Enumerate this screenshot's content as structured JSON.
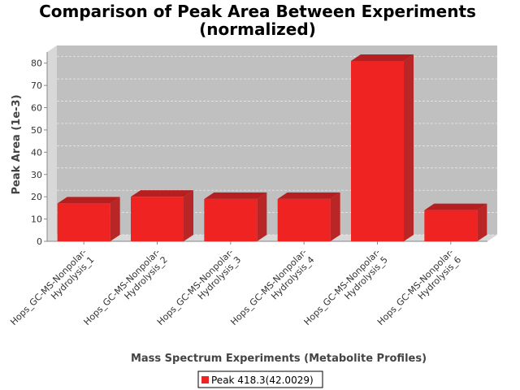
{
  "chart_data": {
    "type": "bar",
    "title_lines": [
      "Comparison of Peak Area Between Experiments",
      "(normalized)"
    ],
    "xlabel": "Mass Spectrum Experiments (Metabolite Profiles)",
    "ylabel": "Peak Area (1e-3)",
    "ylim": [
      0,
      85
    ],
    "yticks": [
      0,
      10,
      20,
      30,
      40,
      50,
      60,
      70,
      80
    ],
    "categories": [
      [
        "Hops_GC-MS-Nonpolar-",
        "Hydrolysis_1"
      ],
      [
        "Hops_GC-MS-Nonpolar-",
        "Hydrolysis_2"
      ],
      [
        "Hops_GC-MS-Nonpolar-",
        "Hydrolysis_3"
      ],
      [
        "Hops_GC-MS-Nonpolar-",
        "Hydrolysis_4"
      ],
      [
        "Hops_GC-MS-Nonpolar-",
        "Hydrolysis_5"
      ],
      [
        "Hops_GC-MS-Nonpolar-",
        "Hydrolysis_6"
      ]
    ],
    "series": [
      {
        "name": "Peak 418.3(42.0029)",
        "values": [
          17,
          20,
          19,
          19,
          81,
          14
        ]
      }
    ],
    "grid": true,
    "legend": "bottom-center",
    "colors": {
      "bar_front": "#f02323",
      "bar_top": "#b51f1f",
      "bar_side": "#b92626",
      "plot_bg": "#c0c0c0",
      "wall": "#d8d8d8",
      "gridline": "#eeeeee"
    }
  }
}
